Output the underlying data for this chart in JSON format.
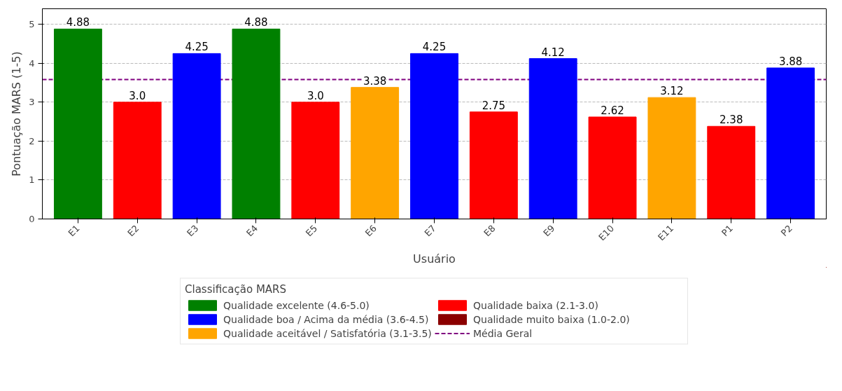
{
  "chart_data": {
    "type": "bar",
    "xlabel": "Usuário",
    "ylabel": "Pontuação MARS (1-5)",
    "legend_title": "Classificação MARS",
    "categories": [
      "E1",
      "E2",
      "E3",
      "E4",
      "E5",
      "E6",
      "E7",
      "E8",
      "E9",
      "E10",
      "E11",
      "P1",
      "P2"
    ],
    "series": [
      {
        "name": "Qualidade excelente (4.6-5.0)",
        "color": "#008000",
        "values": [
          4.88,
          null,
          null,
          4.88,
          null,
          null,
          null,
          null,
          null,
          null,
          null,
          null,
          null
        ],
        "value_labels": [
          "4.88",
          null,
          null,
          "4.88",
          null,
          null,
          null,
          null,
          null,
          null,
          null,
          null,
          null
        ]
      },
      {
        "name": "Qualidade boa / Acima da média (3.6-4.5)",
        "color": "#0000ff",
        "values": [
          null,
          null,
          4.25,
          null,
          null,
          null,
          4.25,
          null,
          4.12,
          null,
          null,
          null,
          3.88
        ],
        "value_labels": [
          null,
          null,
          "4.25",
          null,
          null,
          null,
          "4.25",
          null,
          "4.12",
          null,
          null,
          null,
          "3.88"
        ]
      },
      {
        "name": "Qualidade aceitável / Satisfatória (3.1-3.5)",
        "color": "#ffa500",
        "values": [
          null,
          null,
          null,
          null,
          null,
          3.38,
          null,
          null,
          null,
          null,
          3.12,
          null,
          null
        ],
        "value_labels": [
          null,
          null,
          null,
          null,
          null,
          "3.38",
          null,
          null,
          null,
          null,
          "3.12",
          null,
          null
        ]
      },
      {
        "name": "Qualidade baixa (2.1-3.0)",
        "color": "#ff0000",
        "values": [
          null,
          3.0,
          null,
          null,
          3.0,
          null,
          null,
          2.75,
          null,
          2.62,
          null,
          2.38,
          null
        ],
        "value_labels": [
          null,
          "3.0",
          null,
          null,
          "3.0",
          null,
          null,
          "2.75",
          null,
          "2.62",
          null,
          "2.38",
          null
        ]
      },
      {
        "name": "Qualidade muito baixa (1.0-2.0)",
        "color": "#8b0000",
        "values": [
          null,
          null,
          null,
          null,
          null,
          null,
          null,
          null,
          null,
          null,
          null,
          null,
          null
        ]
      }
    ],
    "ref_lines": [
      {
        "axis": "y",
        "value": 3.58,
        "label": "Média Geral",
        "color": "#800080",
        "line_style": "dashed"
      }
    ],
    "ylim": [
      0,
      5.4
    ],
    "yticks": [
      0,
      1,
      2,
      3,
      4,
      5
    ],
    "grid": "y",
    "legend": "bottom"
  }
}
